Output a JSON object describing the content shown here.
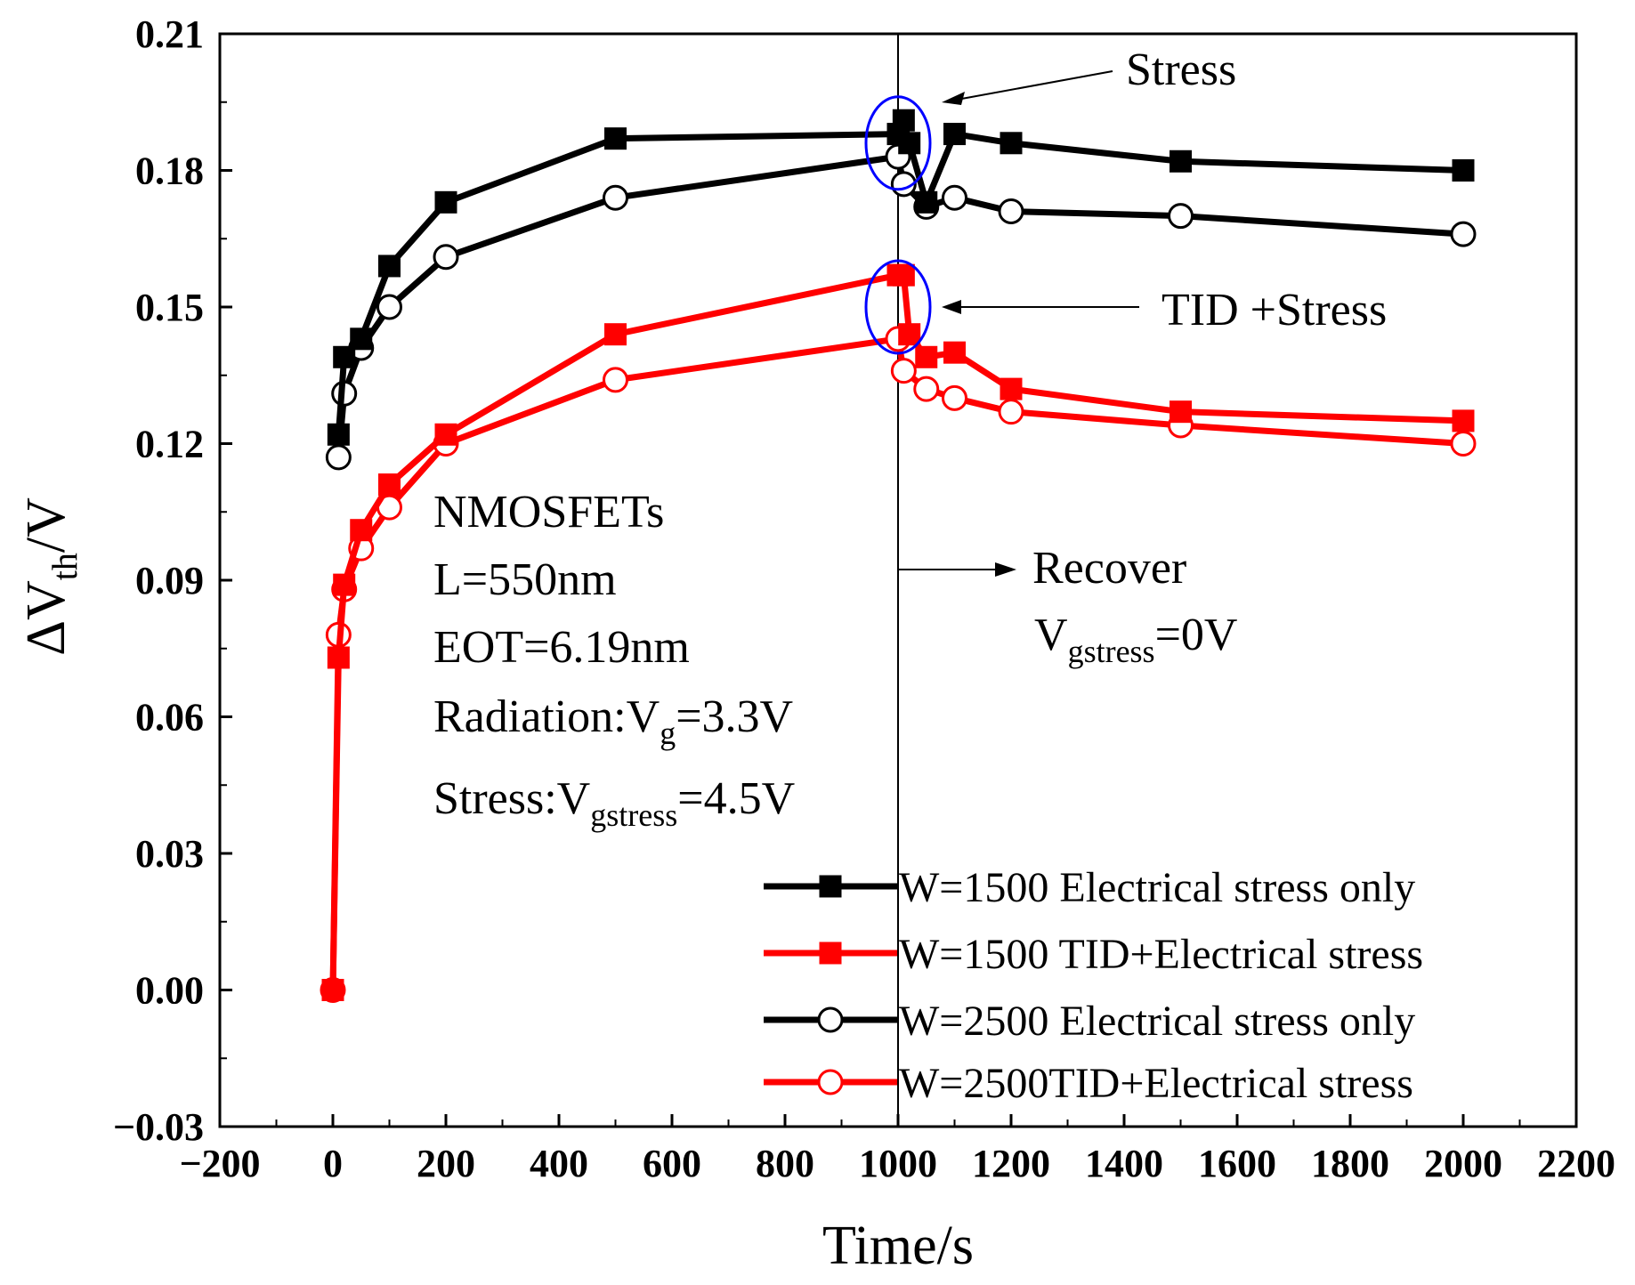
{
  "chart_data": {
    "type": "line",
    "title": "",
    "xlabel": "Time/s",
    "ylabel": "ΔVth/V",
    "ylabel_parts": {
      "main": "ΔV",
      "sub": "th",
      "tail": "/V"
    },
    "xlim": [
      -200,
      2200
    ],
    "ylim": [
      -0.03,
      0.21
    ],
    "x_ticks": [
      -200,
      0,
      200,
      400,
      600,
      800,
      1000,
      1200,
      1400,
      1600,
      1800,
      2000,
      2200
    ],
    "x_tick_labels": [
      "−200",
      "0",
      "200",
      "400",
      "600",
      "800",
      "1000",
      "1200",
      "1400",
      "1600",
      "1800",
      "2000",
      "2200"
    ],
    "y_ticks": [
      -0.03,
      0.0,
      0.03,
      0.06,
      0.09,
      0.12,
      0.15,
      0.18,
      0.21
    ],
    "y_tick_labels": [
      "−0.03",
      "0.00",
      "0.03",
      "0.06",
      "0.09",
      "0.12",
      "0.15",
      "0.18",
      "0.21"
    ],
    "vertical_line_x": 1000,
    "series": [
      {
        "name": "W=1500 Electrical stress only",
        "color": "#000000",
        "marker": "filled-square",
        "x": [
          10,
          20,
          50,
          100,
          200,
          500,
          1000,
          1010,
          1020,
          1050,
          1100,
          1200,
          1500,
          2000
        ],
        "y": [
          0.122,
          0.139,
          0.143,
          0.159,
          0.173,
          0.187,
          0.188,
          0.191,
          0.186,
          0.173,
          0.188,
          0.186,
          0.182,
          0.18
        ]
      },
      {
        "name": "W=1500 TID+Electrical stress",
        "color": "#ff0000",
        "marker": "filled-square",
        "x": [
          0,
          10,
          20,
          50,
          100,
          200,
          500,
          1000,
          1010,
          1020,
          1050,
          1100,
          1200,
          1500,
          2000
        ],
        "y": [
          0.0,
          0.073,
          0.089,
          0.101,
          0.111,
          0.122,
          0.144,
          0.157,
          0.157,
          0.144,
          0.139,
          0.14,
          0.132,
          0.127,
          0.125
        ]
      },
      {
        "name": "W=2500 Electrical stress only",
        "color": "#000000",
        "marker": "open-circle",
        "x": [
          10,
          20,
          50,
          100,
          200,
          500,
          1000,
          1010,
          1050,
          1100,
          1200,
          1500,
          2000
        ],
        "y": [
          0.117,
          0.131,
          0.141,
          0.15,
          0.161,
          0.174,
          0.183,
          0.177,
          0.172,
          0.174,
          0.171,
          0.17,
          0.166
        ]
      },
      {
        "name": "W=2500TID+Electrical stress",
        "color": "#ff0000",
        "marker": "open-circle",
        "x": [
          0,
          10,
          20,
          50,
          100,
          200,
          500,
          1000,
          1010,
          1050,
          1100,
          1200,
          1500,
          2000
        ],
        "y": [
          0.0,
          0.078,
          0.088,
          0.097,
          0.106,
          0.12,
          0.134,
          0.143,
          0.136,
          0.132,
          0.13,
          0.127,
          0.124,
          0.12
        ]
      }
    ],
    "annotations": {
      "stress_label": "Stress",
      "tid_stress_label": "TID +Stress",
      "recover_label": "Recover",
      "vgstress_recover": {
        "main": "V",
        "sub": "gstress",
        "tail": "=0V"
      },
      "device_info": {
        "line1": "NMOSFETs",
        "line2": "L=550nm",
        "line3": "EOT=6.19nm",
        "line4": {
          "main": "Radiation:V",
          "sub": "g",
          "tail": "=3.3V"
        },
        "line5": {
          "main": "Stress:V",
          "sub": "gstress",
          "tail": "=4.5V"
        }
      }
    },
    "highlight_ellipses": [
      {
        "around_x": 1000,
        "around_y": 0.186,
        "color": "#0000ff"
      },
      {
        "around_x": 1000,
        "around_y": 0.15,
        "color": "#0000ff"
      }
    ],
    "legend_position": "bottom-right"
  }
}
